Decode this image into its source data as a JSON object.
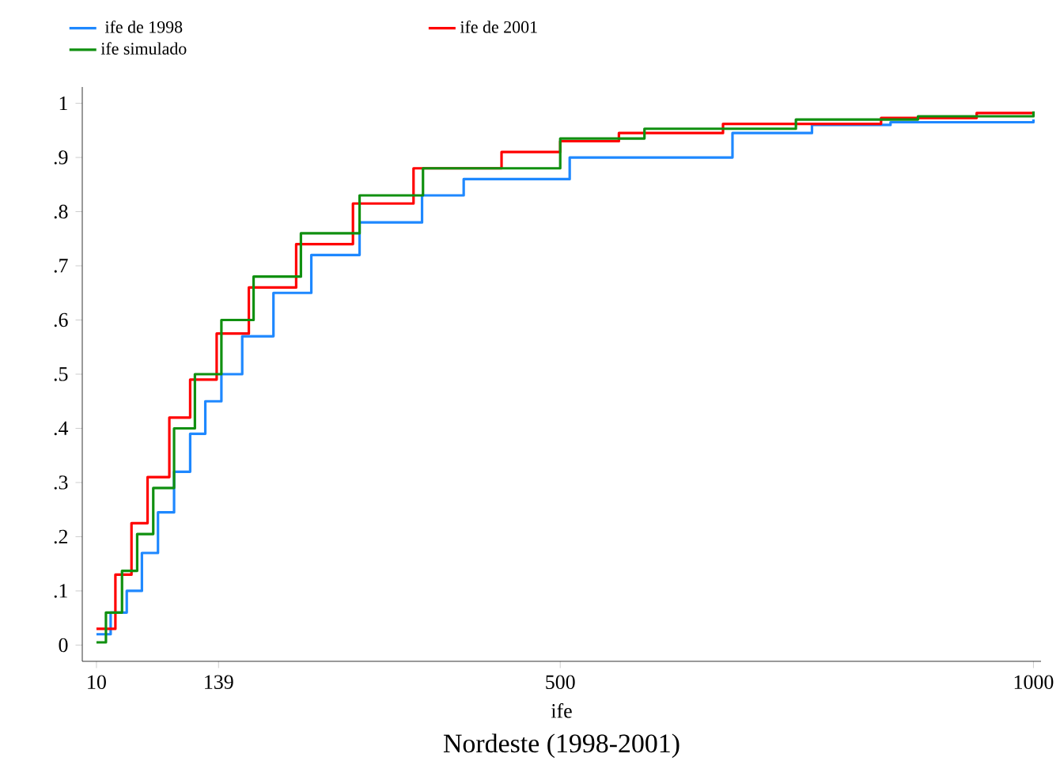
{
  "chart_data": {
    "type": "step",
    "title": "Nordeste (1998-2001)",
    "xlabel": "ife",
    "xlim": [
      -5,
      1008
    ],
    "ylim": [
      -0.03,
      1.03
    ],
    "xticks": [
      10,
      139,
      500,
      1000
    ],
    "yticks": [
      0,
      {
        "value": 0.1,
        "label": ".1"
      },
      {
        "value": 0.2,
        "label": ".2"
      },
      {
        "value": 0.3,
        "label": ".3"
      },
      {
        "value": 0.4,
        "label": ".4"
      },
      {
        "value": 0.5,
        "label": ".5"
      },
      {
        "value": 0.6,
        "label": ".6"
      },
      {
        "value": 0.7,
        "label": ".7"
      },
      {
        "value": 0.8,
        "label": ".8"
      },
      {
        "value": 0.9,
        "label": ".9"
      },
      1
    ],
    "legend": "top",
    "grid": false,
    "marker": "none",
    "line_style": "solid",
    "series": [
      {
        "name": "ife de 1998",
        "color": "#1e88ff",
        "x": [
          10,
          25,
          42,
          58,
          75,
          92,
          109,
          125,
          142,
          164,
          197,
          237,
          288,
          354,
          398,
          510,
          682,
          766,
          849,
          1000
        ],
        "values": [
          0.02,
          0.06,
          0.1,
          0.17,
          0.245,
          0.32,
          0.39,
          0.45,
          0.5,
          0.57,
          0.65,
          0.72,
          0.78,
          0.83,
          0.86,
          0.9,
          0.945,
          0.96,
          0.965,
          0.97
        ]
      },
      {
        "name": "ife de 2001",
        "color": "#ff0000",
        "x": [
          10,
          30,
          47,
          64,
          87,
          109,
          137,
          171,
          221,
          281,
          345,
          438,
          500,
          562,
          672,
          839,
          940,
          1000
        ],
        "values": [
          0.03,
          0.13,
          0.225,
          0.31,
          0.42,
          0.49,
          0.575,
          0.66,
          0.74,
          0.815,
          0.88,
          0.91,
          0.93,
          0.945,
          0.962,
          0.973,
          0.982,
          0.982
        ]
      },
      {
        "name": "ife simulado",
        "color": "#109010",
        "x": [
          10,
          20,
          37,
          53,
          70,
          92,
          114,
          142,
          176,
          226,
          288,
          355,
          500,
          589,
          749,
          878,
          1000
        ],
        "values": [
          0.005,
          0.06,
          0.137,
          0.205,
          0.29,
          0.4,
          0.5,
          0.6,
          0.68,
          0.76,
          0.83,
          0.88,
          0.935,
          0.953,
          0.97,
          0.976,
          0.985
        ]
      }
    ]
  }
}
